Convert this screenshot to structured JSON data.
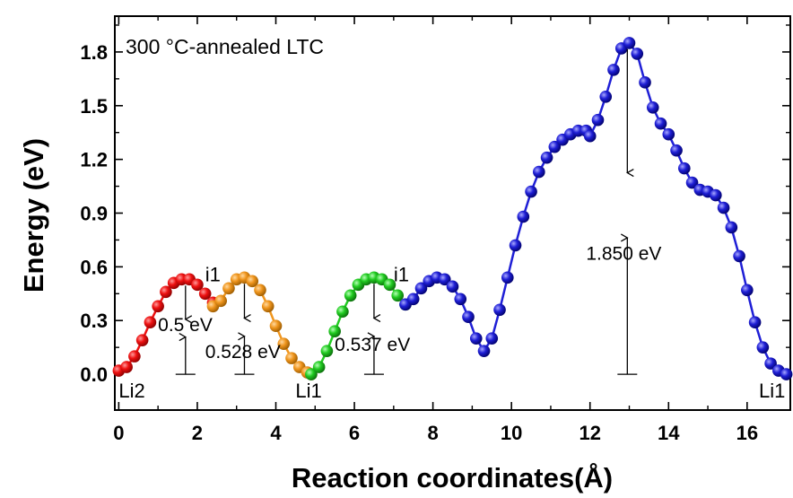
{
  "chart_data": {
    "type": "scatter",
    "title": "300 °C-annealed LTC",
    "xlabel": "Reaction coordinates(Å)",
    "ylabel": "Energy (eV)",
    "xlim": [
      -0.1,
      17.1
    ],
    "ylim": [
      -0.2,
      2.0
    ],
    "x_ticks": [
      0,
      2,
      4,
      6,
      8,
      10,
      12,
      14,
      16
    ],
    "y_ticks": [
      0.0,
      0.3,
      0.6,
      0.9,
      1.2,
      1.5,
      1.8
    ],
    "x_tick_labels": [
      "0",
      "2",
      "4",
      "6",
      "8",
      "10",
      "12",
      "14",
      "16"
    ],
    "y_tick_labels": [
      "0.0",
      "0.3",
      "0.6",
      "0.9",
      "1.2",
      "1.5",
      "1.8"
    ],
    "grid": false,
    "series": [
      {
        "color": "#ee1111",
        "points": [
          [
            0,
            0.02
          ],
          [
            0.2,
            0.04
          ],
          [
            0.4,
            0.1
          ],
          [
            0.6,
            0.19
          ],
          [
            0.8,
            0.29
          ],
          [
            1.0,
            0.38
          ],
          [
            1.2,
            0.46
          ],
          [
            1.4,
            0.51
          ],
          [
            1.6,
            0.53
          ],
          [
            1.8,
            0.53
          ],
          [
            2.0,
            0.5
          ],
          [
            2.2,
            0.45
          ],
          [
            2.4,
            0.4
          ]
        ]
      },
      {
        "color": "#f0961e",
        "points": [
          [
            2.4,
            0.38
          ],
          [
            2.6,
            0.41
          ],
          [
            2.8,
            0.48
          ],
          [
            3.0,
            0.53
          ],
          [
            3.2,
            0.54
          ],
          [
            3.4,
            0.52
          ],
          [
            3.6,
            0.47
          ],
          [
            3.8,
            0.38
          ],
          [
            4.0,
            0.27
          ],
          [
            4.2,
            0.17
          ],
          [
            4.4,
            0.09
          ],
          [
            4.6,
            0.04
          ],
          [
            4.8,
            0.01
          ],
          [
            4.9,
            0.0
          ]
        ]
      },
      {
        "color": "#22cc22",
        "points": [
          [
            4.9,
            0.0
          ],
          [
            5.1,
            0.04
          ],
          [
            5.3,
            0.13
          ],
          [
            5.5,
            0.24
          ],
          [
            5.7,
            0.35
          ],
          [
            5.9,
            0.44
          ],
          [
            6.1,
            0.5
          ],
          [
            6.3,
            0.53
          ],
          [
            6.5,
            0.54
          ],
          [
            6.7,
            0.53
          ],
          [
            6.9,
            0.5
          ],
          [
            7.1,
            0.44
          ],
          [
            7.3,
            0.39
          ]
        ]
      },
      {
        "color": "#1f1fd6",
        "points": [
          [
            7.3,
            0.39
          ],
          [
            7.5,
            0.42
          ],
          [
            7.7,
            0.48
          ],
          [
            7.9,
            0.52
          ],
          [
            8.1,
            0.54
          ],
          [
            8.3,
            0.53
          ],
          [
            8.5,
            0.49
          ],
          [
            8.7,
            0.42
          ],
          [
            8.9,
            0.32
          ],
          [
            9.1,
            0.2
          ],
          [
            9.3,
            0.13
          ],
          [
            9.5,
            0.2
          ],
          [
            9.7,
            0.36
          ],
          [
            9.9,
            0.54
          ],
          [
            10.1,
            0.72
          ],
          [
            10.3,
            0.88
          ],
          [
            10.5,
            1.02
          ],
          [
            10.7,
            1.13
          ],
          [
            10.9,
            1.21
          ],
          [
            11.1,
            1.27
          ],
          [
            11.3,
            1.31
          ],
          [
            11.5,
            1.34
          ],
          [
            11.7,
            1.36
          ],
          [
            11.9,
            1.36
          ],
          [
            12.0,
            1.33
          ],
          [
            12.2,
            1.42
          ],
          [
            12.4,
            1.55
          ],
          [
            12.6,
            1.7
          ],
          [
            12.8,
            1.82
          ],
          [
            13.0,
            1.85
          ],
          [
            13.2,
            1.79
          ],
          [
            13.4,
            1.63
          ],
          [
            13.6,
            1.49
          ],
          [
            13.8,
            1.4
          ],
          [
            14.0,
            1.34
          ],
          [
            14.2,
            1.25
          ],
          [
            14.4,
            1.15
          ],
          [
            14.6,
            1.07
          ],
          [
            14.8,
            1.03
          ],
          [
            15.0,
            1.02
          ],
          [
            15.2,
            1.0
          ],
          [
            15.4,
            0.93
          ],
          [
            15.6,
            0.82
          ],
          [
            15.8,
            0.66
          ],
          [
            16.0,
            0.47
          ],
          [
            16.2,
            0.29
          ],
          [
            16.4,
            0.15
          ],
          [
            16.6,
            0.06
          ],
          [
            16.8,
            0.02
          ],
          [
            17.0,
            0.0
          ]
        ]
      }
    ],
    "annotations": [
      {
        "text": "Li2",
        "x": 0.0,
        "y": -0.13
      },
      {
        "text": "Li1",
        "x": 4.5,
        "y": -0.13
      },
      {
        "text": "Li1",
        "x": 16.3,
        "y": -0.13
      },
      {
        "text": "i1",
        "x": 2.2,
        "y": 0.52
      },
      {
        "text": "i1",
        "x": 7.0,
        "y": 0.52
      },
      {
        "text": "0.5 eV",
        "x": 1.0,
        "y": 0.24
      },
      {
        "text": "0.528 eV",
        "x": 2.2,
        "y": 0.09
      },
      {
        "text": "0.537 eV",
        "x": 5.5,
        "y": 0.13
      },
      {
        "text": "1.850 eV",
        "x": 11.9,
        "y": 0.64
      }
    ],
    "barriers": [
      {
        "x": 1.7,
        "top": 0.53,
        "bottom": 0.0,
        "ref": "left"
      },
      {
        "x": 3.2,
        "top": 0.54,
        "bottom": 0.0,
        "ref": "right"
      },
      {
        "x": 6.5,
        "top": 0.54,
        "bottom": 0.0,
        "ref": "left"
      },
      {
        "x": 12.95,
        "top": 1.85,
        "bottom": 0.0,
        "ref": "both"
      }
    ]
  }
}
